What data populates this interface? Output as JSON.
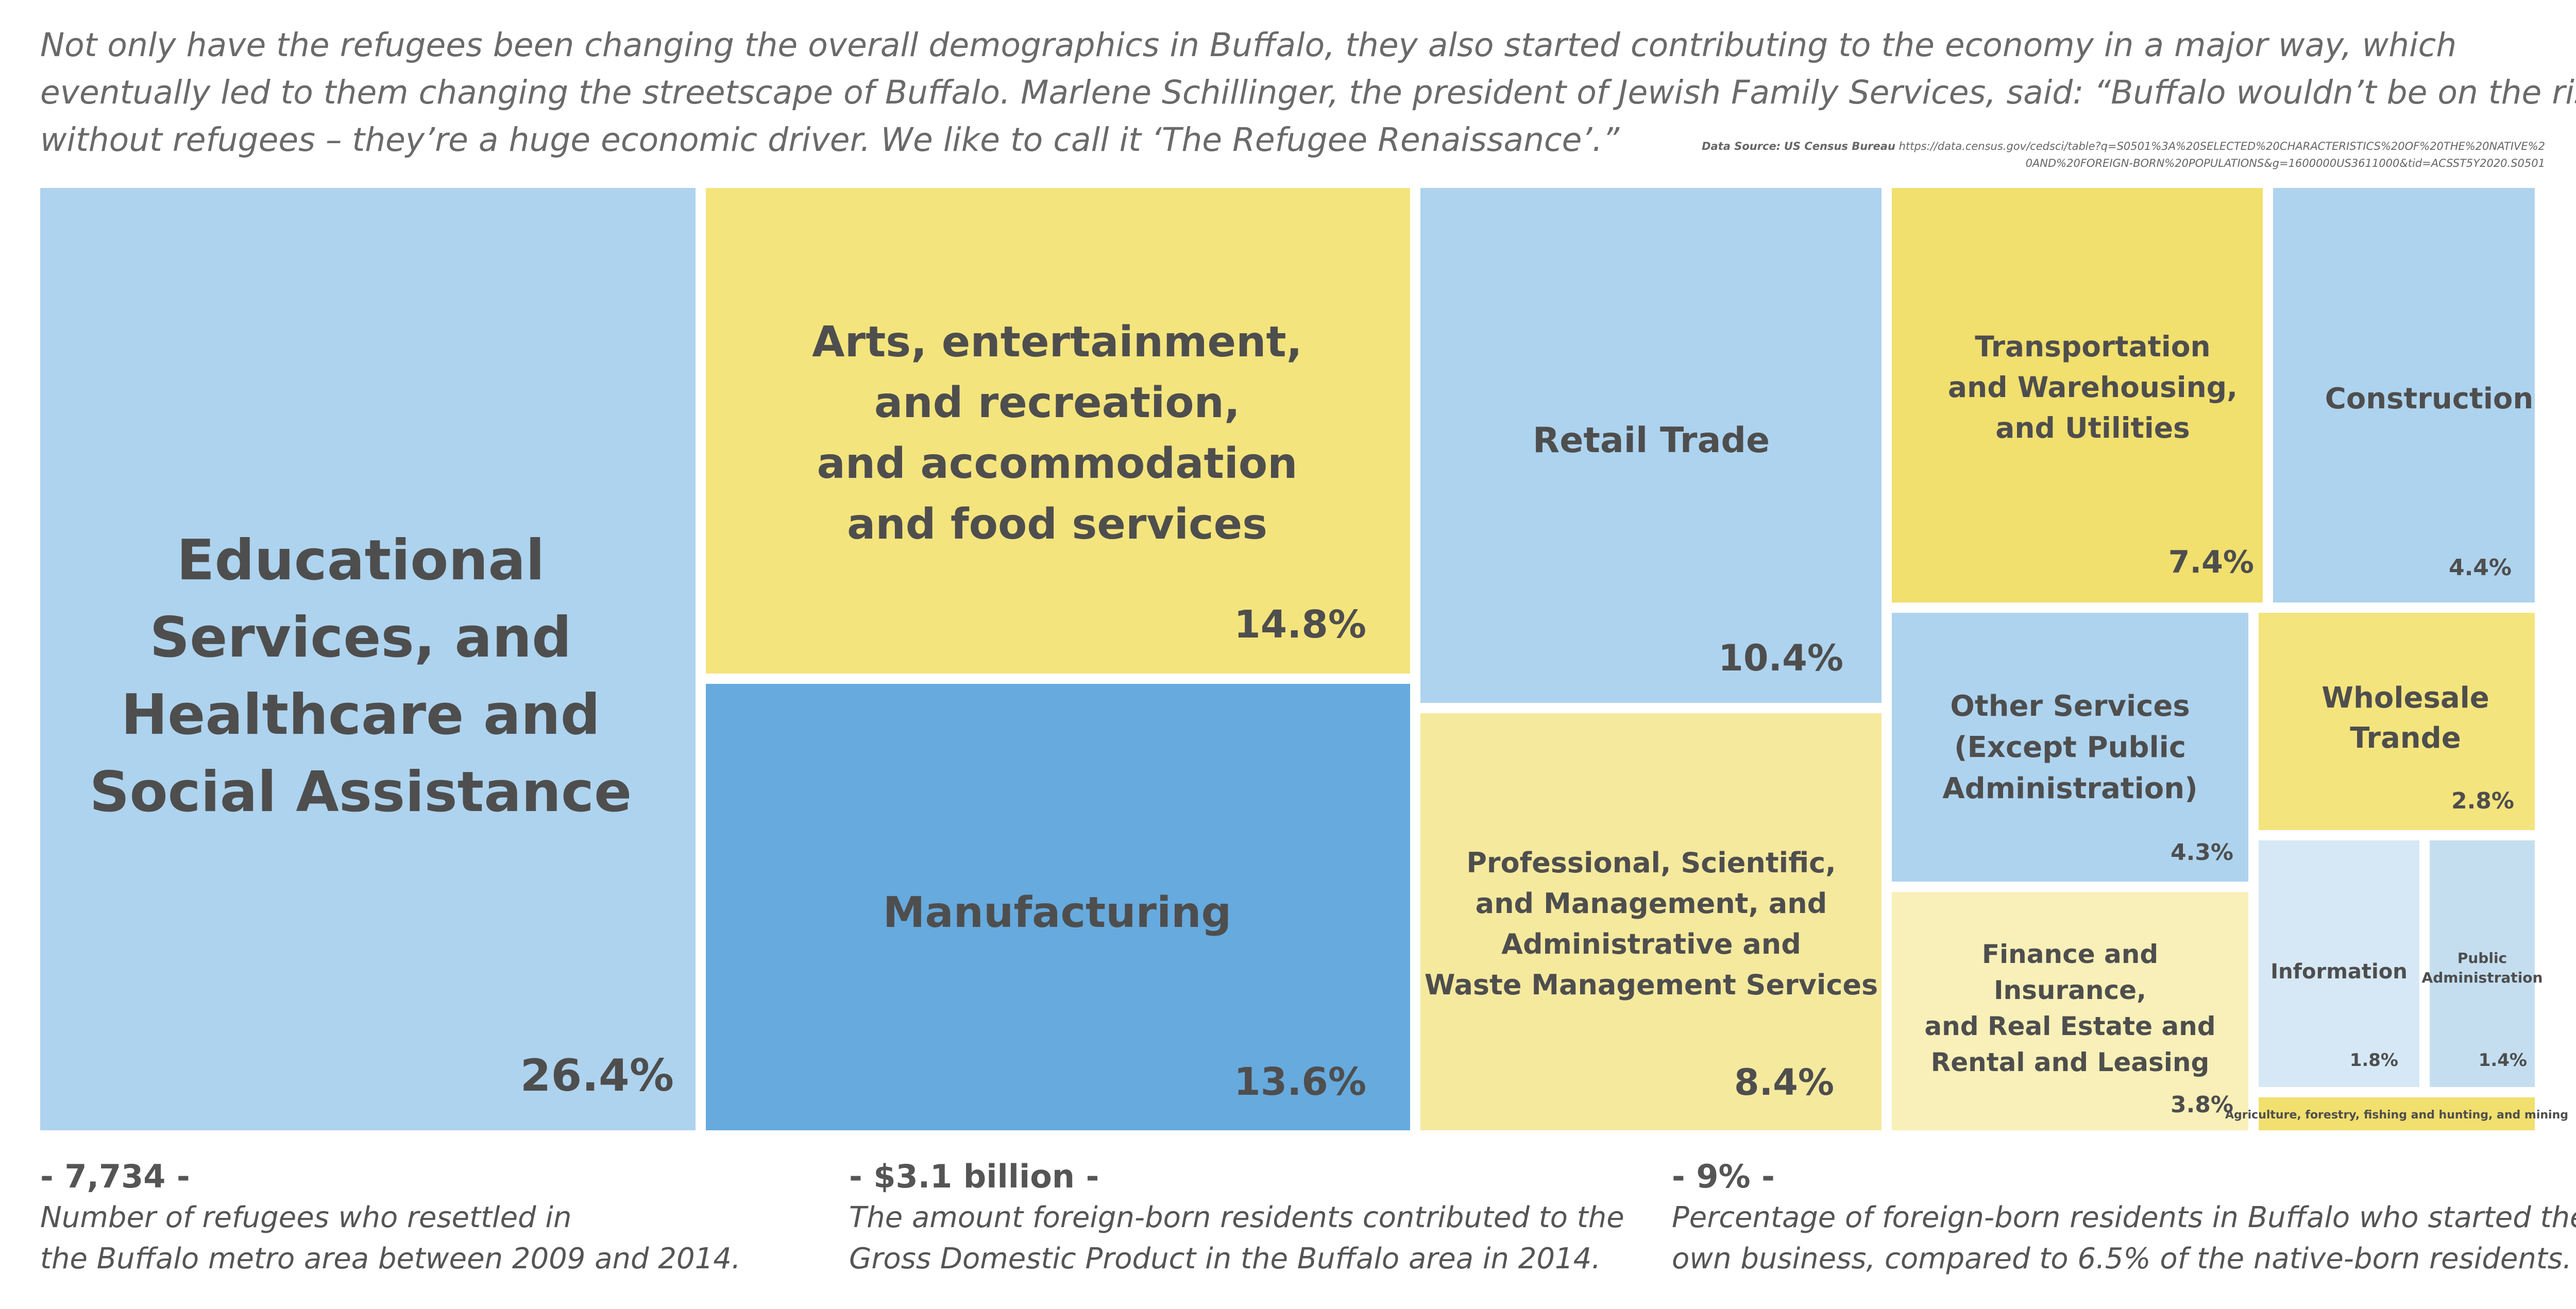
{
  "intro_lines": [
    "Not only have the refugees been changing the overall demographics in Buffalo, they also started contributing to the economy in a major way, which",
    "eventually led to them changing the streetscape of Buffalo. Marlene Schillinger, the president of Jewish Family Services, said: “Buffalo wouldn’t be on the rise",
    "without refugees – they’re a huge economic driver. We like to call it ‘The Refugee Renaissance’.”"
  ],
  "source": {
    "label": "Data Source",
    "name": "US Census Bureau",
    "url": "https://data.census.gov/cedsci/table?q=S0501%3A%20SELECTED%20CHARACTERISTICS%20OF%20THE%20NATIVE%20AND%20FOREIGN-BORN%20POPULATIONS&g=1600000US3611000&tid=ACSST5Y2020.S0501"
  },
  "colors": {
    "blue_light": "#aed3ee",
    "blue_mid": "#66aade",
    "blue_pale": "#c4def0",
    "blue_paler": "#d6e8f5",
    "yellow_light": "#f4e47d",
    "yellow_mid": "#f1df6e",
    "yellow_pale": "#f5e99e",
    "yellow_paler": "#f8f0b8",
    "text": "#4e4e4e"
  },
  "chart_data": {
    "type": "treemap",
    "title": "",
    "unit": "%",
    "items": [
      {
        "name": "Educational Services, and Healthcare and Social Assistance",
        "label_lines": [
          "Educational",
          "Services, and",
          "Healthcare and",
          "Social Assistance"
        ],
        "value": 26.4,
        "value_label": "26.4%",
        "color": "#aed3ee"
      },
      {
        "name": "Arts, entertainment, and recreation, and accommodation and food services",
        "label_lines": [
          "Arts, entertainment,",
          "and recreation,",
          "and accommodation",
          "and food services"
        ],
        "value": 14.8,
        "value_label": "14.8%",
        "color": "#f4e47d"
      },
      {
        "name": "Manufacturing",
        "label_lines": [
          "Manufacturing"
        ],
        "value": 13.6,
        "value_label": "13.6%",
        "color": "#66aade"
      },
      {
        "name": "Retail Trade",
        "label_lines": [
          "Retail Trade"
        ],
        "value": 10.4,
        "value_label": "10.4%",
        "color": "#aed3ee"
      },
      {
        "name": "Professional, Scientific, and Management, and Administrative and Waste Management Services",
        "label_lines": [
          "Professional, Scientific,",
          "and Management, and",
          "Administrative and",
          "Waste Management Services"
        ],
        "value": 8.4,
        "value_label": "8.4%",
        "color": "#f5e99e"
      },
      {
        "name": "Transportation and Warehousing, and Utilities",
        "label_lines": [
          "Transportation",
          "and Warehousing,",
          "and Utilities"
        ],
        "value": 7.4,
        "value_label": "7.4%",
        "color": "#f1df6e"
      },
      {
        "name": "Construction",
        "label_lines": [
          "Construction"
        ],
        "value": 4.4,
        "value_label": "4.4%",
        "color": "#aed3ee"
      },
      {
        "name": "Other Services (Except Public Administration)",
        "label_lines": [
          "Other Services",
          "(Except Public",
          "Administration)"
        ],
        "value": 4.3,
        "value_label": "4.3%",
        "color": "#aed3ee"
      },
      {
        "name": "Wholesale Trande",
        "label_lines": [
          "Wholesale",
          "Trande"
        ],
        "value": 2.8,
        "value_label": "2.8%",
        "color": "#f4e47d"
      },
      {
        "name": "Finance and Insurance, and Real Estate and Rental and Leasing",
        "label_lines": [
          "Finance and",
          "Insurance,",
          "and Real Estate and",
          "Rental and Leasing"
        ],
        "value": 3.8,
        "value_label": "3.8%",
        "color": "#f8f0b8"
      },
      {
        "name": "Information",
        "label_lines": [
          "Information"
        ],
        "value": 1.8,
        "value_label": "1.8%",
        "color": "#d6e8f5"
      },
      {
        "name": "Public Administration",
        "label_lines": [
          "Public",
          "Administration"
        ],
        "value": 1.4,
        "value_label": "1.4%",
        "color": "#c4def0"
      },
      {
        "name": "Agriculture, forestry, fishing and hunting, and mining",
        "label_lines": [
          "Agriculture, forestry, fishing and hunting, and mining"
        ],
        "value": null,
        "value_label": "",
        "color": "#f1df6e"
      }
    ]
  },
  "stats": [
    {
      "big": "- 7,734 -",
      "desc_lines": [
        "Number of refugees who resettled in",
        "the Buffalo metro area between 2009 and 2014."
      ]
    },
    {
      "big": "- $3.1 billion -",
      "desc_lines": [
        "The amount foreign-born residents contributed to the",
        "Gross Domestic Product in the Buffalo area in 2014."
      ]
    },
    {
      "big": "- 9% -",
      "desc_lines": [
        "Percentage of foreign-born residents in Buffalo who started their",
        "own business, compared to 6.5% of the native-born residents."
      ]
    }
  ]
}
